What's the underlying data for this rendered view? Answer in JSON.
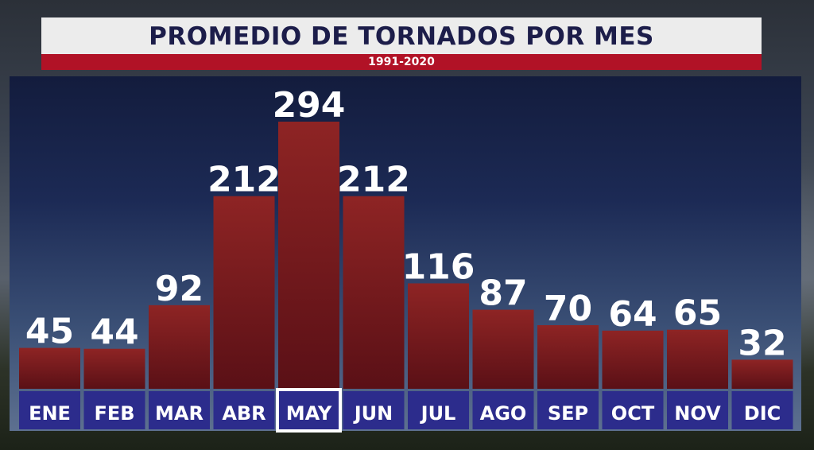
{
  "header": {
    "title": "PROMEDIO DE TORNADOS POR MES",
    "subtitle": "1991-2020"
  },
  "colors": {
    "bar_top": "#8e2424",
    "bar_bottom": "#5a1016",
    "label_strip": "#2c2c8c",
    "highlight_border": "#ffffff",
    "value_text": "#ffffff"
  },
  "chart_data": {
    "type": "bar",
    "title": "PROMEDIO DE TORNADOS POR MES",
    "subtitle": "1991-2020",
    "categories": [
      "ENE",
      "FEB",
      "MAR",
      "ABR",
      "MAY",
      "JUN",
      "JUL",
      "AGO",
      "SEP",
      "OCT",
      "NOV",
      "DIC"
    ],
    "values": [
      45,
      44,
      92,
      212,
      294,
      212,
      116,
      87,
      70,
      64,
      65,
      32
    ],
    "highlighted_category": "MAY",
    "ylim": [
      0,
      294
    ],
    "grid": false,
    "legend": "none"
  }
}
